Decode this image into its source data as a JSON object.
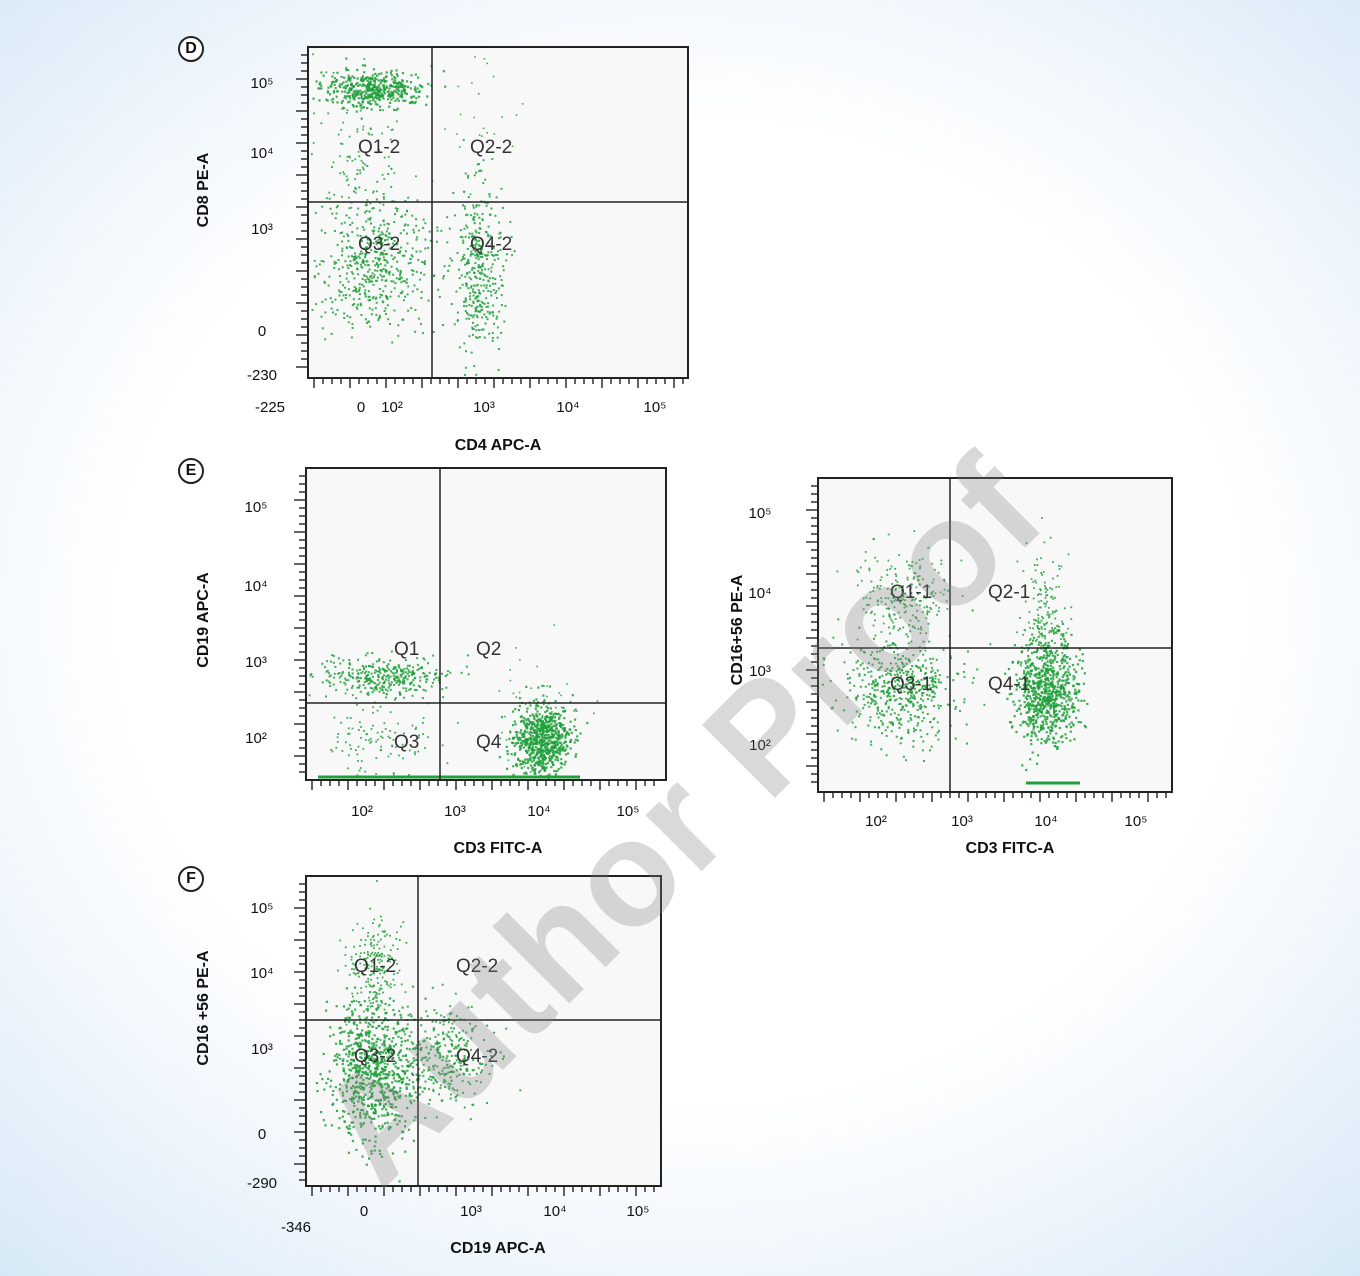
{
  "watermark": "Author Proof",
  "colors": {
    "dot": "#1fa03a",
    "frame": "#222222",
    "plot_bg": "#f8f8f8"
  },
  "chart_data": [
    {
      "id": "D",
      "panel": "D",
      "type": "scatter",
      "xlabel": "CD4 APC-A",
      "ylabel": "CD8 PE-A",
      "xticks": [
        "-225",
        "0",
        "10²",
        "10³",
        "10⁴",
        "10⁵"
      ],
      "yticks": [
        "10⁵",
        "10⁴",
        "10³",
        "0",
        "-230"
      ],
      "quadrant_labels": [
        "Q1-2",
        "Q2-2",
        "Q3-2",
        "Q4-2"
      ],
      "quadrant_gate": {
        "x": "~3×10²",
        "y": "~2×10³"
      }
    },
    {
      "id": "E1",
      "panel": "E",
      "type": "scatter",
      "xlabel": "CD3 FITC-A",
      "ylabel": "CD19 APC-A",
      "xticks": [
        "10²",
        "10³",
        "10⁴",
        "10⁵"
      ],
      "yticks": [
        "10⁵",
        "10⁴",
        "10³",
        "10²"
      ],
      "quadrant_labels": [
        "Q1",
        "Q2",
        "Q3",
        "Q4"
      ],
      "quadrant_gate": {
        "x": "~7×10²",
        "y": "~3×10²"
      }
    },
    {
      "id": "E2",
      "panel": "E",
      "type": "scatter",
      "xlabel": "CD3 FITC-A",
      "ylabel": "CD16+56 PE-A",
      "xticks": [
        "10²",
        "10³",
        "10⁴",
        "10⁵"
      ],
      "yticks": [
        "10⁵",
        "10⁴",
        "10³",
        "10²"
      ],
      "quadrant_labels": [
        "Q1-1",
        "Q2-1",
        "Q3-1",
        "Q4-1"
      ],
      "quadrant_gate": {
        "x": "~8×10²",
        "y": "~2×10³"
      }
    },
    {
      "id": "F",
      "panel": "F",
      "type": "scatter",
      "xlabel": "CD19 APC-A",
      "ylabel": "CD16 +56 PE-A",
      "xticks": [
        "-346",
        "0",
        "10³",
        "10⁴",
        "10⁵"
      ],
      "yticks": [
        "10⁵",
        "10⁴",
        "10³",
        "0",
        "-290"
      ],
      "quadrant_labels": [
        "Q1-2",
        "Q2-2",
        "Q3-2",
        "Q4-2"
      ],
      "quadrant_gate": {
        "x": "~4×10²",
        "y": "~2×10³"
      }
    }
  ]
}
